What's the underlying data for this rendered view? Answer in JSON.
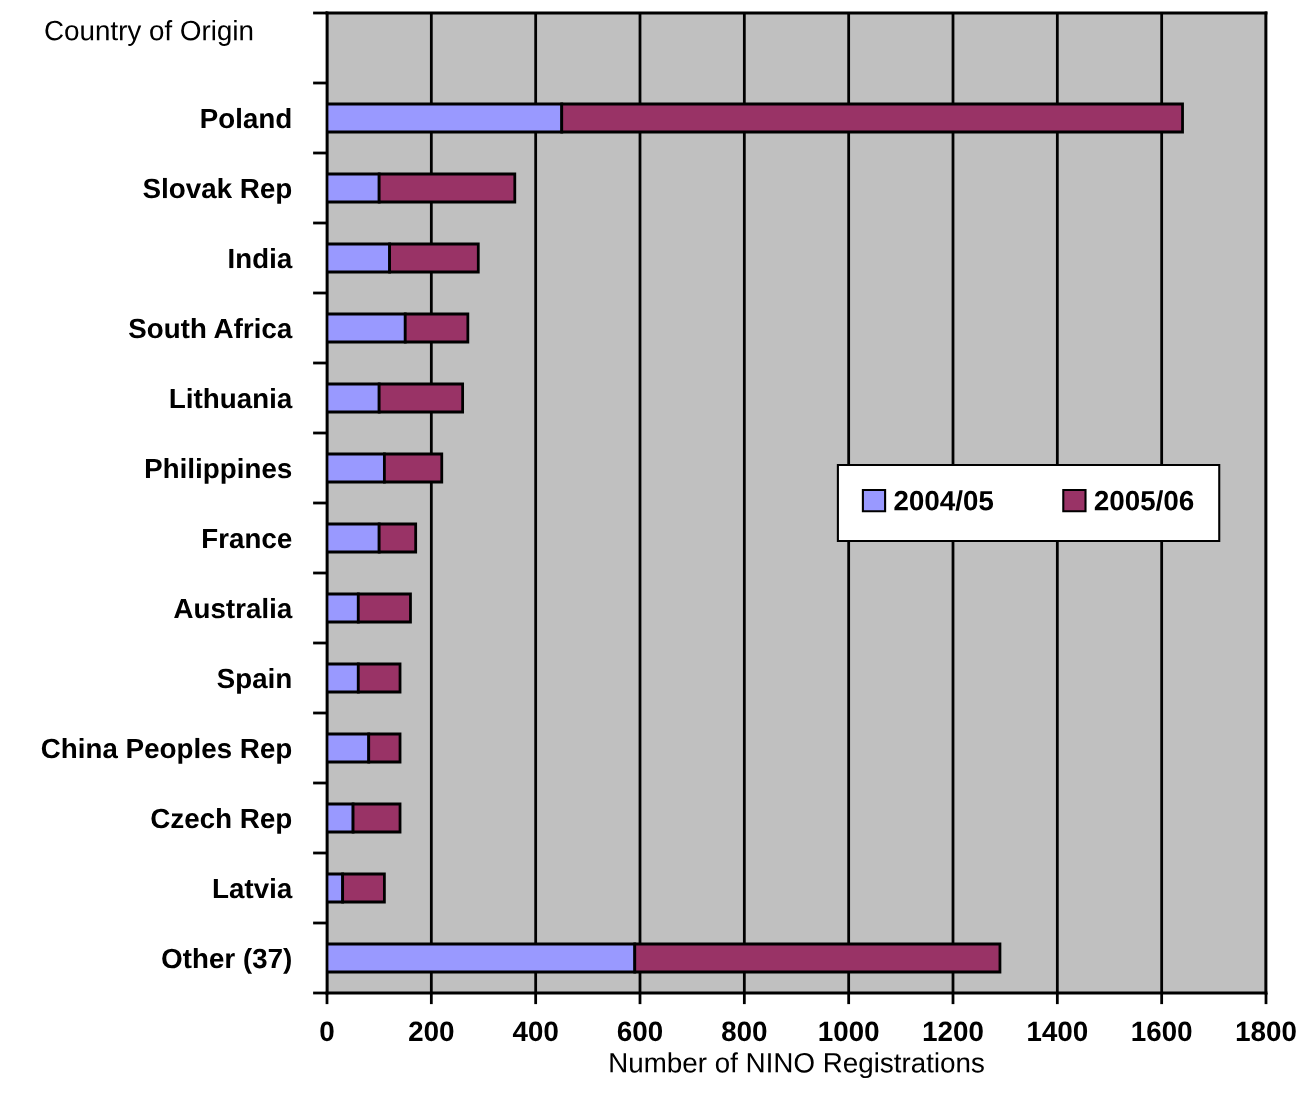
{
  "chart_data": {
    "type": "bar",
    "orientation": "horizontal",
    "stacked": true,
    "ylabel": "Country of Origin",
    "xlabel": "Number of NINO Registrations",
    "categories": [
      "Poland",
      "Slovak Rep",
      "India",
      "South Africa",
      "Lithuania",
      "Philippines",
      "France",
      "Australia",
      "Spain",
      "China Peoples Rep",
      "Czech Rep",
      "Latvia",
      "Other (37)"
    ],
    "series": [
      {
        "name": "2004/05",
        "color": "#9999ff",
        "values": [
          450,
          100,
          120,
          150,
          100,
          110,
          100,
          60,
          60,
          80,
          50,
          30,
          590
        ]
      },
      {
        "name": "2005/06",
        "color": "#993366",
        "values": [
          1190,
          260,
          170,
          120,
          160,
          110,
          70,
          100,
          80,
          60,
          90,
          80,
          700
        ]
      }
    ],
    "xlim": [
      0,
      1800
    ],
    "xticks": [
      0,
      200,
      400,
      600,
      800,
      1000,
      1200,
      1400,
      1600,
      1800
    ],
    "grid": "x",
    "legend": "right"
  }
}
